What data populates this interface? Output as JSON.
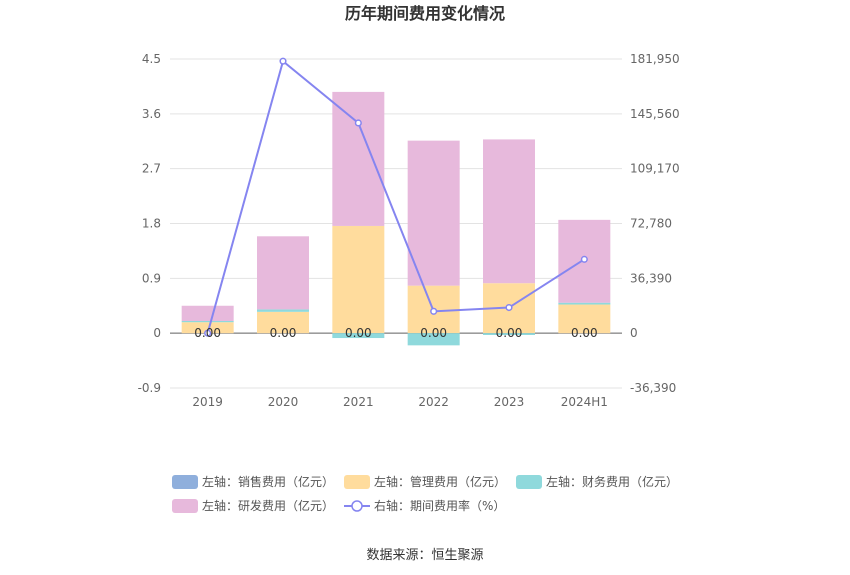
{
  "title": "历年期间费用变化情况",
  "source": "数据来源：恒生聚源",
  "chart_data": {
    "type": "bar",
    "stacked": true,
    "categories": [
      "2019",
      "2020",
      "2021",
      "2022",
      "2023",
      "2024H1"
    ],
    "left_axis": {
      "ticks": [
        "-0.9",
        "0",
        "0.9",
        "1.8",
        "2.7",
        "3.6",
        "4.5"
      ],
      "ylim": [
        -0.9,
        4.5
      ]
    },
    "right_axis": {
      "ticks": [
        "-36,390",
        "0",
        "36,390",
        "72,780",
        "109,170",
        "145,560",
        "181,950"
      ],
      "ylim": [
        -36390,
        181950
      ]
    },
    "series": [
      {
        "name": "左轴：销售费用（亿元）",
        "axis": "left",
        "color": "#8fafdc",
        "values": [
          0.0,
          0.0,
          0.0,
          0.0,
          0.0,
          0.0
        ]
      },
      {
        "name": "左轴：管理费用（亿元）",
        "axis": "left",
        "color": "#ffdc9d",
        "values": [
          0.18,
          0.35,
          1.76,
          0.78,
          0.82,
          0.47
        ]
      },
      {
        "name": "左轴：财务费用（亿元）",
        "axis": "left",
        "color": "#8fd9dc",
        "values": [
          0.02,
          0.04,
          -0.08,
          -0.2,
          -0.03,
          0.03
        ]
      },
      {
        "name": "左轴：研发费用（亿元）",
        "axis": "left",
        "color": "#e7b9dc",
        "values": [
          0.25,
          1.2,
          2.2,
          2.38,
          2.36,
          1.36
        ]
      },
      {
        "name": "右轴：期间费用率（%）",
        "axis": "right",
        "type": "line",
        "color": "#8585f0",
        "values": [
          0,
          180500,
          139500,
          14500,
          17000,
          49000
        ]
      }
    ],
    "data_labels": [
      "0.00",
      "0.00",
      "0.00",
      "0.00",
      "0.00",
      "0.00"
    ],
    "legend_position": "bottom"
  }
}
